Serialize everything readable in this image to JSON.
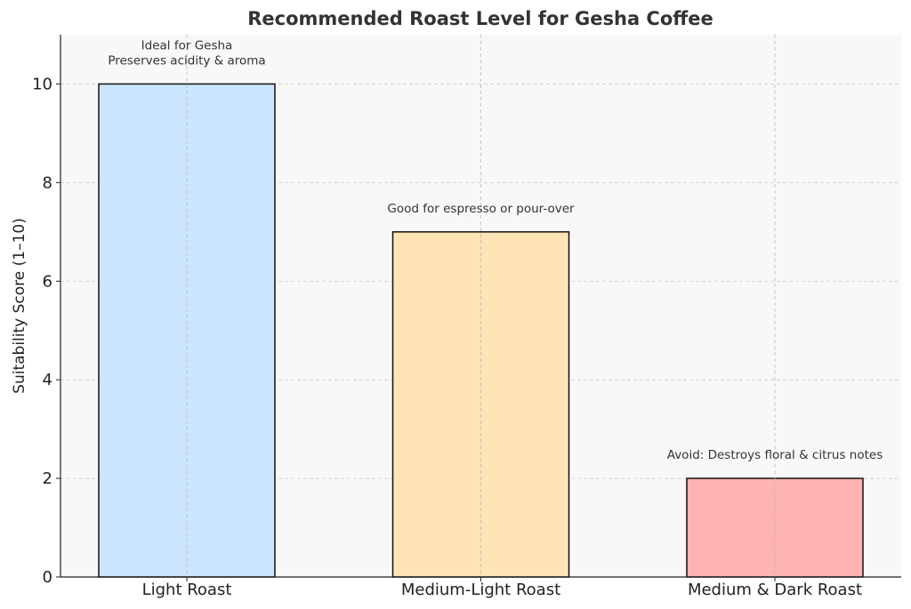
{
  "chart_data": {
    "type": "bar",
    "title": "Recommended Roast Level for Gesha Coffee",
    "xlabel": "",
    "ylabel": "Suitability Score (1–10)",
    "ylim": [
      0,
      11
    ],
    "yticks": [
      0,
      2,
      4,
      6,
      8,
      10
    ],
    "grid": true,
    "categories": [
      "Light Roast",
      "Medium-Light Roast",
      "Medium & Dark Roast"
    ],
    "values": [
      10,
      7,
      2
    ],
    "colors": [
      "#cce5ff",
      "#ffe4b5",
      "#ffb3b3"
    ],
    "annotations": [
      [
        "Ideal for Gesha",
        "Preserves acidity & aroma"
      ],
      [
        "Good for espresso or pour-over"
      ],
      [
        "Avoid: Destroys floral & citrus notes"
      ]
    ]
  }
}
